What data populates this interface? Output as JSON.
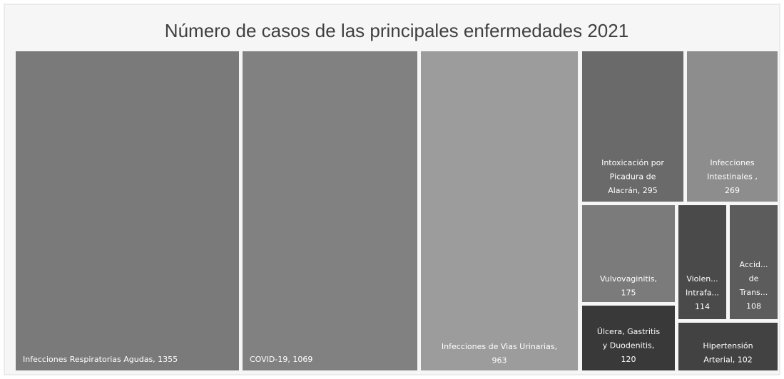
{
  "chart_data": {
    "type": "treemap",
    "title": "Número de casos de las principales enfermedades 2021",
    "labels": [
      [
        "Infecciones Respiratorias Agudas, 1355"
      ],
      [
        "COVID-19, 1069"
      ],
      [
        "Infecciones de Vias Urinarias,",
        "963"
      ],
      [
        "Intoxicación por",
        "Picadura de",
        "Alacrán, 295"
      ],
      [
        "Infecciones",
        "Intestinales ,",
        "269"
      ],
      [
        "Vulvovaginitis,",
        "175"
      ],
      [
        "Violen...",
        "Intrafa...",
        "114"
      ],
      [
        "Accid...",
        "de",
        "Trans...",
        "108"
      ],
      [
        "Úlcera, Gastritis",
        "y Duodenitis,",
        "120"
      ],
      [
        "Hipertensión",
        "Arterial, 102"
      ]
    ],
    "values": [
      1355,
      1069,
      963,
      295,
      269,
      175,
      114,
      108,
      120,
      102
    ],
    "colors": [
      "#7a7a7a",
      "#818181",
      "#9c9c9c",
      "#6a6a6a",
      "#8d8d8d",
      "#7b7b7b",
      "#4a4a4a",
      "#5c5c5c",
      "#393939",
      "#424242"
    ]
  }
}
